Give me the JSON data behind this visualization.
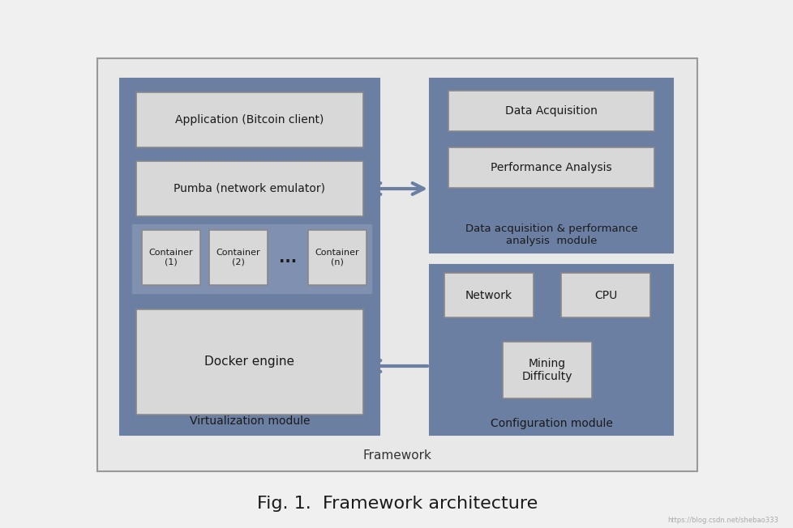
{
  "title": "Fig. 1.  Framework architecture",
  "title_fontsize": 16,
  "bg_color": "#f0f0f0",
  "outer_frame_color": "#999999",
  "outer_frame_bg": "#e8e8e8",
  "dark_blue": "#6b7fa3",
  "light_gray_box": "#d8d8d8",
  "white_box": "#f5f5f5",
  "framework_label": "Framework",
  "virt_module_label": "Virtualization module",
  "config_module_label": "Configuration module",
  "data_acq_label": "Data acquisition & performance\nanalysis  module",
  "boxes": {
    "app": "Application (Bitcoin client)",
    "pumba": "Pumba (network emulator)",
    "container1": "Container\n(1)",
    "container2": "Container\n(2)",
    "container3": "Container\n(n)",
    "dots": "...",
    "docker": "Docker engine",
    "data_acq": "Data Acquisition",
    "perf_analysis": "Performance Analysis",
    "network": "Network",
    "cpu": "CPU",
    "mining": "Mining\nDifficulty"
  }
}
